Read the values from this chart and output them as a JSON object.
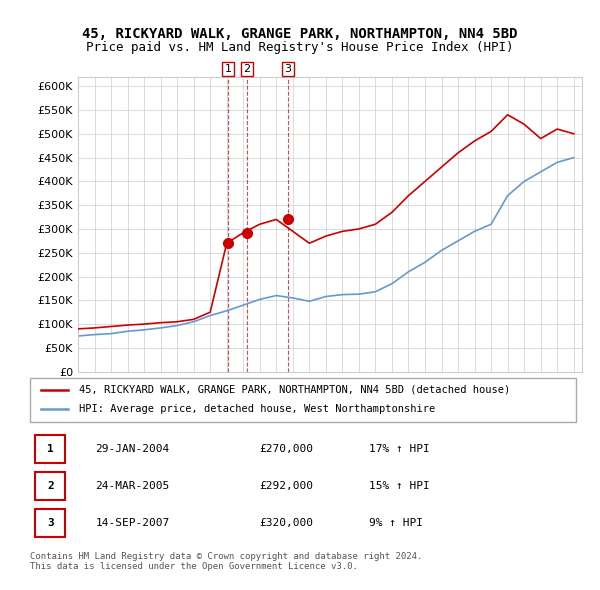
{
  "title_line1": "45, RICKYARD WALK, GRANGE PARK, NORTHAMPTON, NN4 5BD",
  "title_line2": "Price paid vs. HM Land Registry's House Price Index (HPI)",
  "ylim": [
    0,
    620000
  ],
  "yticks": [
    0,
    50000,
    100000,
    150000,
    200000,
    250000,
    300000,
    350000,
    400000,
    450000,
    500000,
    550000,
    600000
  ],
  "legend_line1": "45, RICKYARD WALK, GRANGE PARK, NORTHAMPTON, NN4 5BD (detached house)",
  "legend_line2": "HPI: Average price, detached house, West Northamptonshire",
  "transactions": [
    {
      "num": 1,
      "date": "29-JAN-2004",
      "price": 270000,
      "pct": "17%",
      "dir": "↑",
      "label": "HPI"
    },
    {
      "num": 2,
      "date": "24-MAR-2005",
      "price": 292000,
      "pct": "15%",
      "dir": "↑",
      "label": "HPI"
    },
    {
      "num": 3,
      "date": "14-SEP-2007",
      "price": 320000,
      "pct": "9%",
      "dir": "↑",
      "label": "HPI"
    }
  ],
  "footer": "Contains HM Land Registry data © Crown copyright and database right 2024.\nThis data is licensed under the Open Government Licence v3.0.",
  "red_color": "#cc0000",
  "blue_color": "#6699cc",
  "vline_color": "#cc0000",
  "hpi_years": [
    1995,
    1996,
    1997,
    1998,
    1999,
    2000,
    2001,
    2002,
    2003,
    2004,
    2005,
    2006,
    2007,
    2008,
    2009,
    2010,
    2011,
    2012,
    2013,
    2014,
    2015,
    2016,
    2017,
    2018,
    2019,
    2020,
    2021,
    2022,
    2023,
    2024,
    2025
  ],
  "hpi_values": [
    75000,
    78000,
    80000,
    85000,
    88000,
    92000,
    97000,
    105000,
    118000,
    128000,
    140000,
    152000,
    160000,
    155000,
    148000,
    158000,
    162000,
    163000,
    168000,
    185000,
    210000,
    230000,
    255000,
    275000,
    295000,
    310000,
    370000,
    400000,
    420000,
    440000,
    450000
  ],
  "red_years": [
    1995,
    1996,
    1997,
    1998,
    1999,
    2000,
    2001,
    2002,
    2003,
    2004,
    2005,
    2006,
    2007,
    2008,
    2009,
    2010,
    2011,
    2012,
    2013,
    2014,
    2015,
    2016,
    2017,
    2018,
    2019,
    2020,
    2021,
    2022,
    2023,
    2024,
    2025
  ],
  "red_values": [
    90000,
    92000,
    95000,
    98000,
    100000,
    103000,
    105000,
    110000,
    125000,
    270000,
    292000,
    310000,
    320000,
    295000,
    270000,
    285000,
    295000,
    300000,
    310000,
    335000,
    370000,
    400000,
    430000,
    460000,
    485000,
    505000,
    540000,
    520000,
    490000,
    510000,
    500000
  ]
}
